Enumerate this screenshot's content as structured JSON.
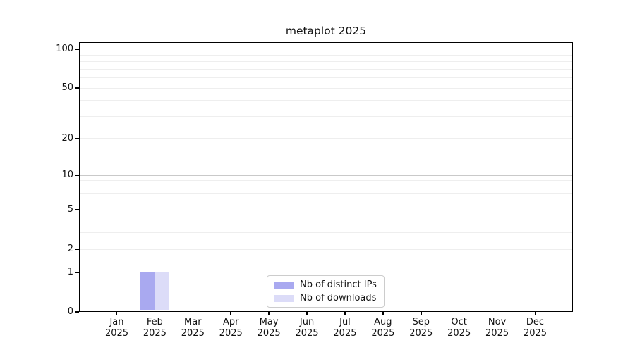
{
  "chart_data": {
    "type": "bar",
    "title": "metaplot 2025",
    "categories": [
      "Jan",
      "Feb",
      "Mar",
      "Apr",
      "May",
      "Jun",
      "Jul",
      "Aug",
      "Sep",
      "Oct",
      "Nov",
      "Dec"
    ],
    "year_label": "2025",
    "series": [
      {
        "name": "Nb of distinct IPs",
        "color": "#a9a9f0",
        "values": [
          0,
          1,
          0,
          0,
          0,
          0,
          0,
          0,
          0,
          0,
          0,
          0
        ]
      },
      {
        "name": "Nb of downloads",
        "color": "#dcdcf8",
        "values": [
          0,
          1,
          0,
          0,
          0,
          0,
          0,
          0,
          0,
          0,
          0,
          0
        ]
      }
    ],
    "y_scale": "log1p",
    "y_ticks": [
      0,
      1,
      2,
      5,
      10,
      20,
      50,
      100
    ],
    "ylim": [
      0,
      113
    ],
    "xlabel": "",
    "ylabel": "",
    "grid": true,
    "legend_position": "lower center",
    "colors": {
      "major_grid": "#c9c9c9",
      "minor_grid": "#eeeeee",
      "axis": "#000000",
      "text": "#111111"
    }
  }
}
